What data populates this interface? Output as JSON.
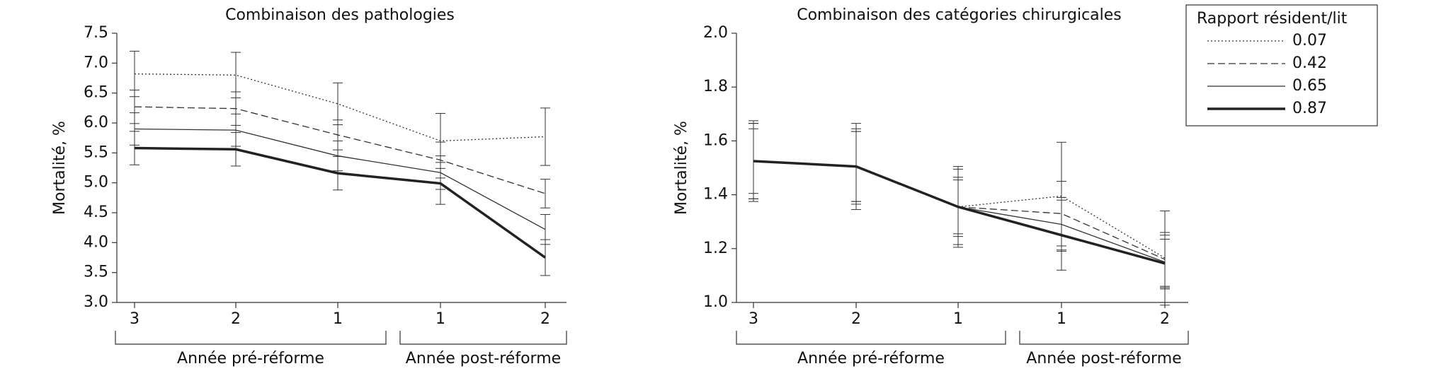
{
  "chart_data": [
    {
      "type": "line",
      "title": "Combinaison des pathologies",
      "ylabel": "Mortalité, %",
      "categories": [
        "3",
        "2",
        "1",
        "1",
        "2"
      ],
      "groups": [
        {
          "label": "Année pré-réforme",
          "span": [
            0,
            2
          ]
        },
        {
          "label": "Année post-réforme",
          "span": [
            3,
            4
          ]
        }
      ],
      "ylim": [
        3,
        7.5
      ],
      "yticks": [
        {
          "value": 3,
          "label": "3.0"
        },
        3.5,
        {
          "value": 4,
          "label": "4.0"
        },
        4.5,
        {
          "value": 5,
          "label": "5.0"
        },
        5.5,
        {
          "value": 6,
          "label": "6.0"
        },
        6.5,
        {
          "value": 7,
          "label": "7.0"
        },
        7.5
      ],
      "series": [
        {
          "name": "0.07",
          "color": "#333333",
          "line_style": "dotted",
          "line_width": 1.3,
          "values": [
            6.82,
            6.8,
            6.32,
            5.7,
            5.77
          ],
          "errors": [
            0.38,
            0.38,
            0.35,
            0.46,
            0.48
          ]
        },
        {
          "name": "0.42",
          "color": "#333333",
          "line_style": "dashed",
          "line_width": 1.3,
          "values": [
            6.27,
            6.24,
            5.8,
            5.38,
            4.82
          ],
          "errors": [
            0.28,
            0.28,
            0.25,
            0.3,
            0.24
          ]
        },
        {
          "name": "0.65",
          "color": "#333333",
          "line_style": "solid",
          "line_width": 1.3,
          "values": [
            5.9,
            5.88,
            5.45,
            5.17,
            4.22
          ],
          "errors": [
            0.27,
            0.27,
            0.25,
            0.28,
            0.25
          ]
        },
        {
          "name": "0.87",
          "color": "#222222",
          "line_style": "solid",
          "line_width": 3.5,
          "values": [
            5.58,
            5.56,
            5.16,
            4.99,
            3.75
          ],
          "errors": [
            0.28,
            0.28,
            0.28,
            0.35,
            0.3
          ]
        }
      ]
    },
    {
      "type": "line",
      "title": "Combinaison des catégories chirurgicales",
      "ylabel": "Mortalité, %",
      "categories": [
        "3",
        "2",
        "1",
        "1",
        "2"
      ],
      "groups": [
        {
          "label": "Année pré-réforme",
          "span": [
            0,
            2
          ]
        },
        {
          "label": "Année post-réforme",
          "span": [
            3,
            4
          ]
        }
      ],
      "ylim": [
        1,
        2
      ],
      "yticks": [
        {
          "value": 1,
          "label": "1.0"
        },
        1.2,
        1.4,
        1.6,
        1.8,
        {
          "value": 2,
          "label": "2.0"
        }
      ],
      "legend": {
        "title": "Rapport résident/lit",
        "position": "upper right"
      },
      "series": [
        {
          "name": "0.07",
          "color": "#333333",
          "line_style": "dotted",
          "line_width": 1.3,
          "values": [
            1.525,
            1.505,
            1.355,
            1.395,
            1.165
          ],
          "errors": [
            0.15,
            0.16,
            0.15,
            0.2,
            0.175
          ]
        },
        {
          "name": "0.42",
          "color": "#333333",
          "line_style": "dashed",
          "line_width": 1.3,
          "values": [
            1.525,
            1.505,
            1.355,
            1.33,
            1.16
          ],
          "errors": [
            0.14,
            0.14,
            0.14,
            0.12,
            0.1
          ]
        },
        {
          "name": "0.65",
          "color": "#333333",
          "line_style": "solid",
          "line_width": 1.3,
          "values": [
            1.525,
            1.505,
            1.355,
            1.29,
            1.15
          ],
          "errors": [
            0.14,
            0.13,
            0.1,
            0.1,
            0.1
          ]
        },
        {
          "name": "0.87",
          "color": "#222222",
          "line_style": "solid",
          "line_width": 3.5,
          "values": [
            1.525,
            1.505,
            1.355,
            1.25,
            1.145
          ],
          "errors": [
            0.12,
            0.13,
            0.11,
            0.13,
            0.09
          ]
        }
      ]
    }
  ]
}
